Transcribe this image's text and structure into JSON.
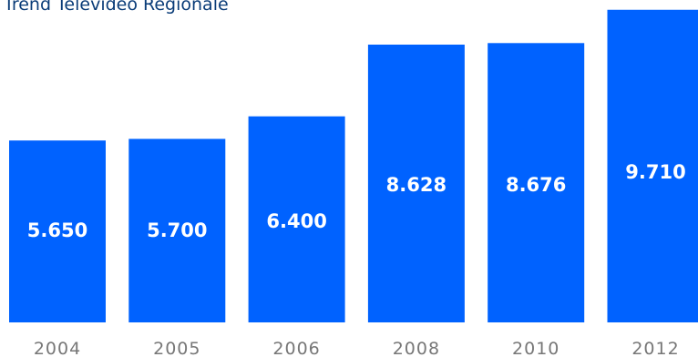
{
  "chart_data": {
    "type": "bar",
    "title": "Trend Televideo Regionale",
    "categories": [
      "2004",
      "2005",
      "2006",
      "2008",
      "2010",
      "2012"
    ],
    "values": [
      5650,
      5700,
      6400,
      8628,
      8676,
      9710
    ],
    "value_labels": [
      "5.650",
      "5.700",
      "6.400",
      "8.628",
      "8.676",
      "9.710"
    ],
    "xlabel": "",
    "ylabel": "",
    "grid": false,
    "bar_color": "#0062ff"
  }
}
